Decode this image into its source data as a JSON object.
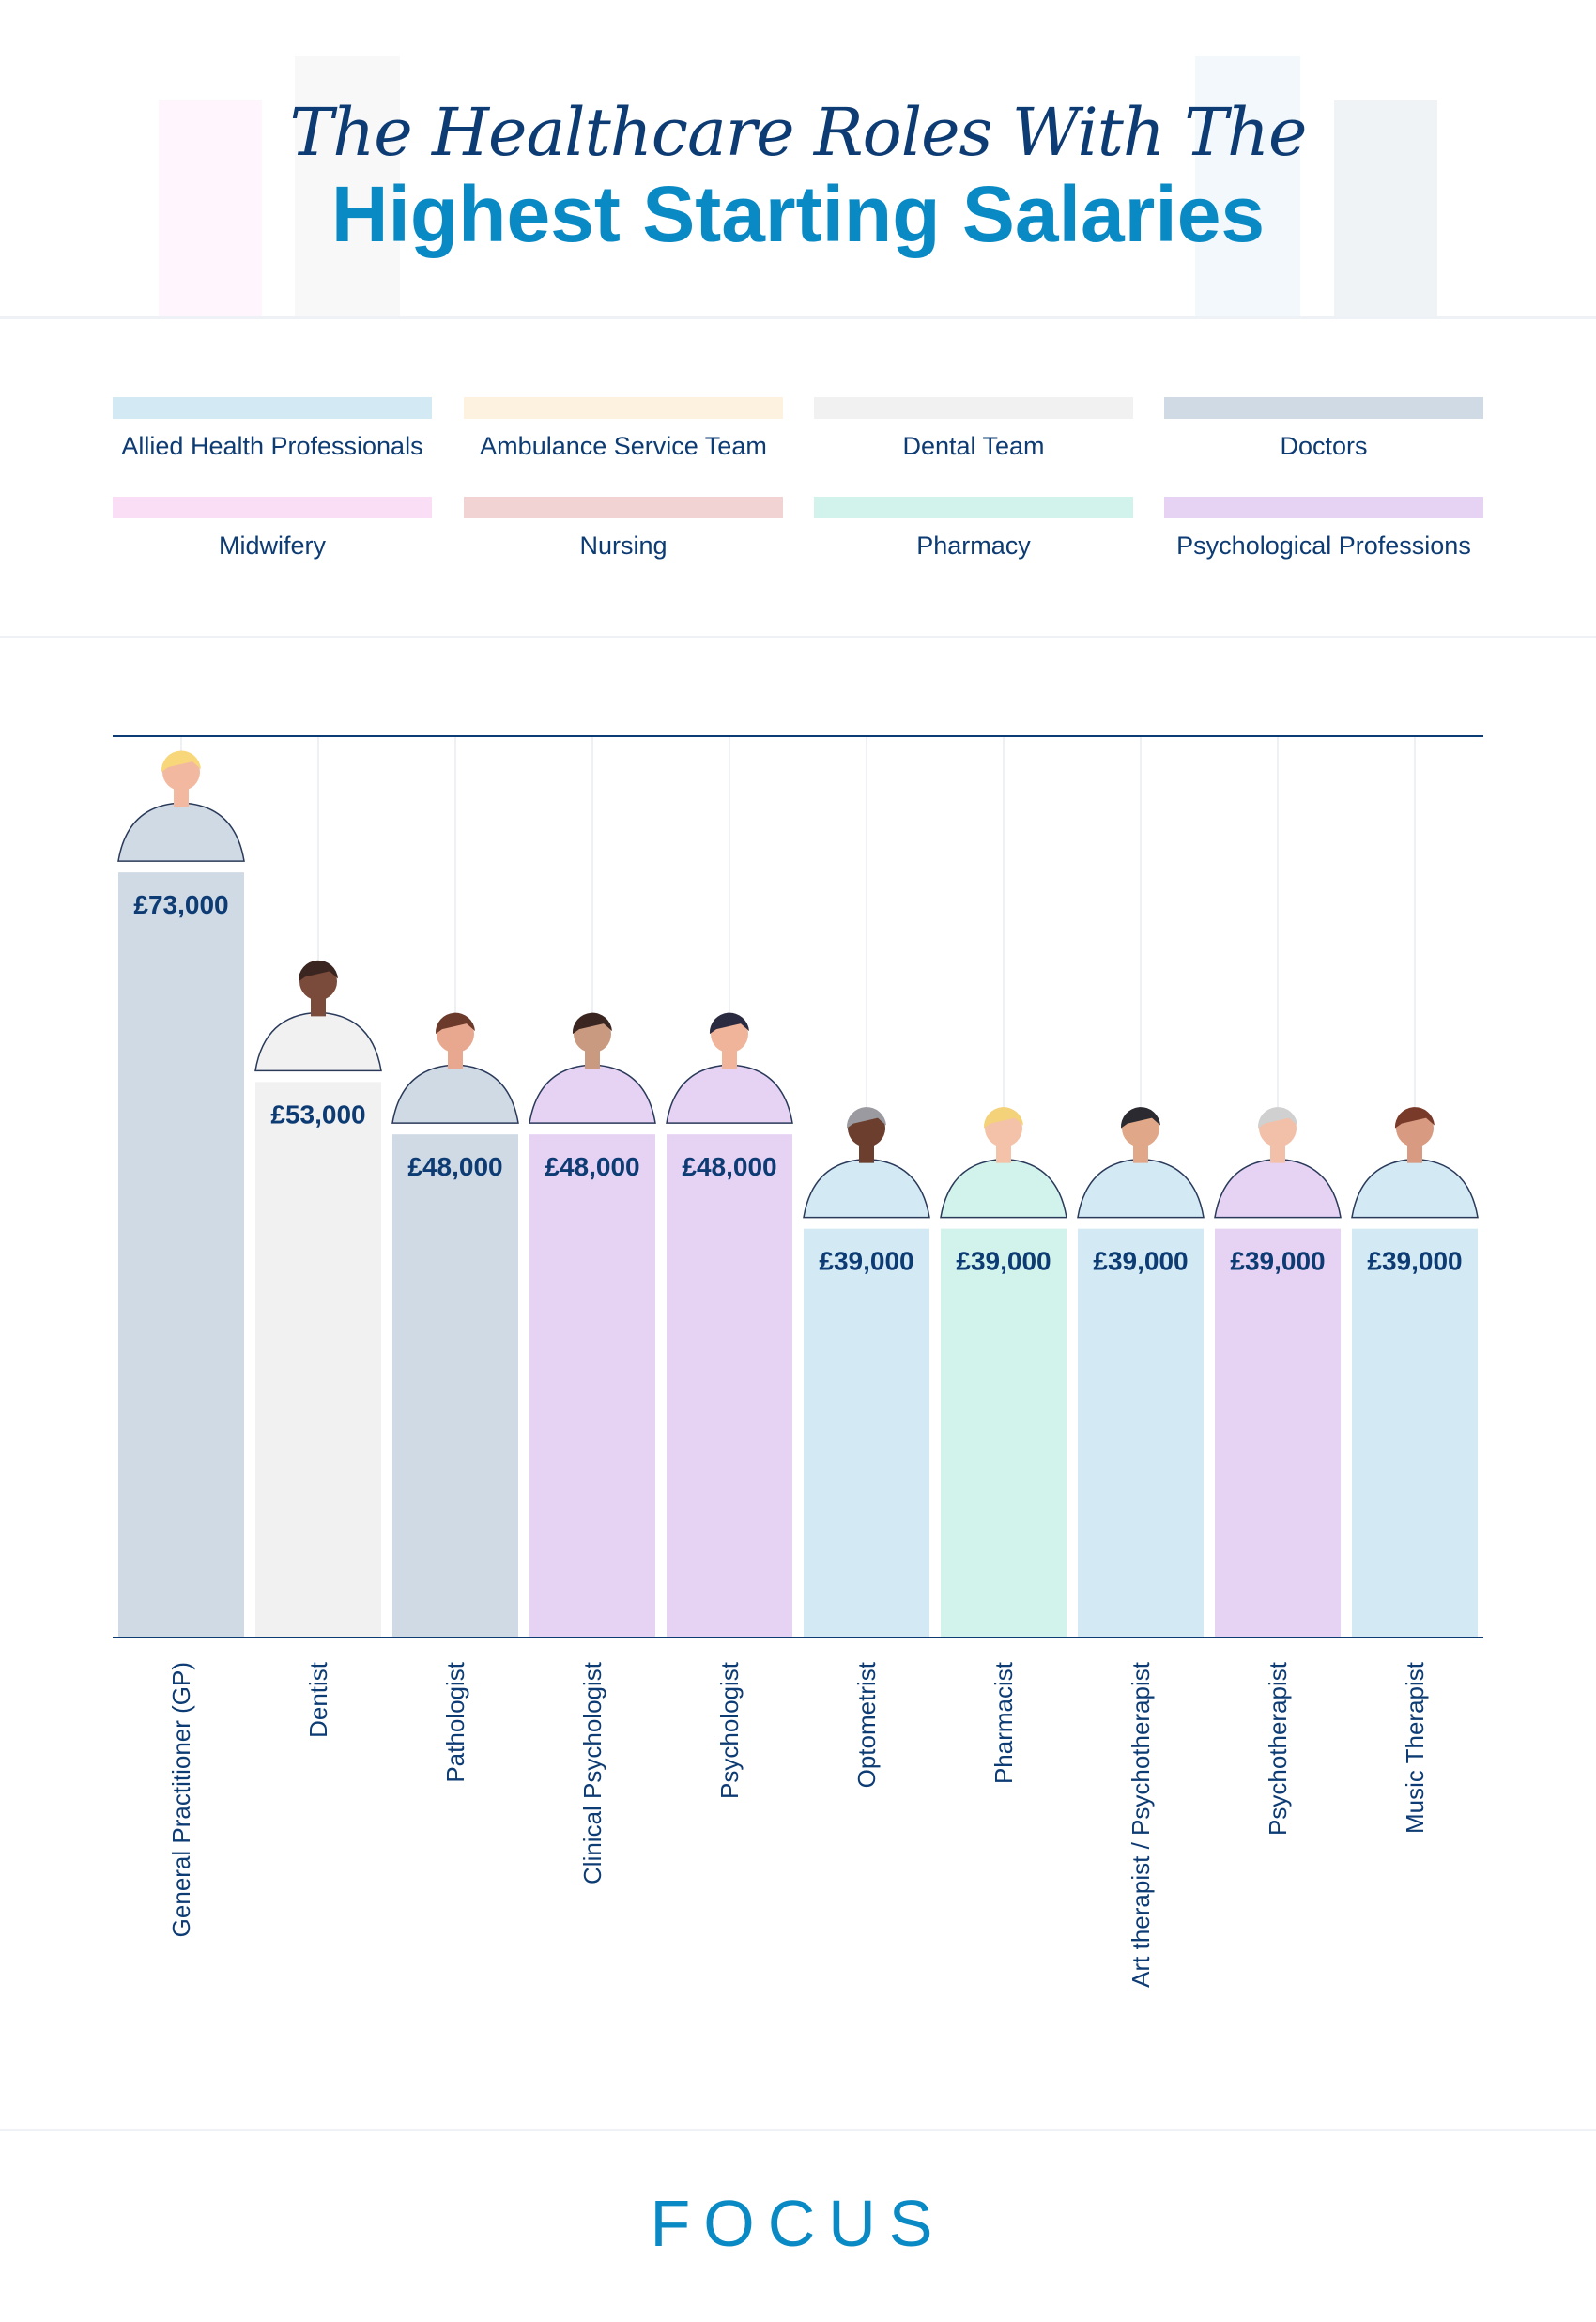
{
  "title": {
    "line1": "The Healthcare Roles With The",
    "line2": "Highest Starting Salaries"
  },
  "legend": [
    {
      "label": "Allied Health Professionals",
      "color": "#d3eaf5"
    },
    {
      "label": "Ambulance Service Team",
      "color": "#fdf1e0"
    },
    {
      "label": "Dental Team",
      "color": "#f1f1f1"
    },
    {
      "label": "Doctors",
      "color": "#d0dae5"
    },
    {
      "label": "Midwifery",
      "color": "#f9def5"
    },
    {
      "label": "Nursing",
      "color": "#f2d3d3"
    },
    {
      "label": "Pharmacy",
      "color": "#d2f3ec"
    },
    {
      "label": "Psychological Professions",
      "color": "#e6d2f3"
    }
  ],
  "chart_data": {
    "type": "bar",
    "title": "The Healthcare Roles With The Highest Starting Salaries",
    "categories": [
      "General Practitioner (GP)",
      "Dentist",
      "Pathologist",
      "Clinical Psychologist",
      "Psychologist",
      "Optometrist",
      "Pharmacist",
      "Art therapist / Psychotherapist",
      "Psychotherapist",
      "Music Therapist"
    ],
    "values": [
      73000,
      53000,
      48000,
      48000,
      48000,
      39000,
      39000,
      39000,
      39000,
      39000
    ],
    "value_labels": [
      "£73,000",
      "£53,000",
      "£48,000",
      "£48,000",
      "£48,000",
      "£39,000",
      "£39,000",
      "£39,000",
      "£39,000",
      "£39,000"
    ],
    "groups": [
      "Doctors",
      "Dental Team",
      "Doctors",
      "Psychological Professions",
      "Psychological Professions",
      "Allied Health Professionals",
      "Pharmacy",
      "Allied Health Professionals",
      "Psychological Professions",
      "Allied Health Professionals"
    ],
    "ylim": [
      0,
      86000
    ],
    "grid": false,
    "legend_placement": "top",
    "xlabel": "",
    "ylabel": ""
  },
  "colors": {
    "axis": "#0d3b73",
    "label": "#0d3b73",
    "accent": "#0a8ac4"
  },
  "logo": {
    "text": "FOCUS"
  }
}
